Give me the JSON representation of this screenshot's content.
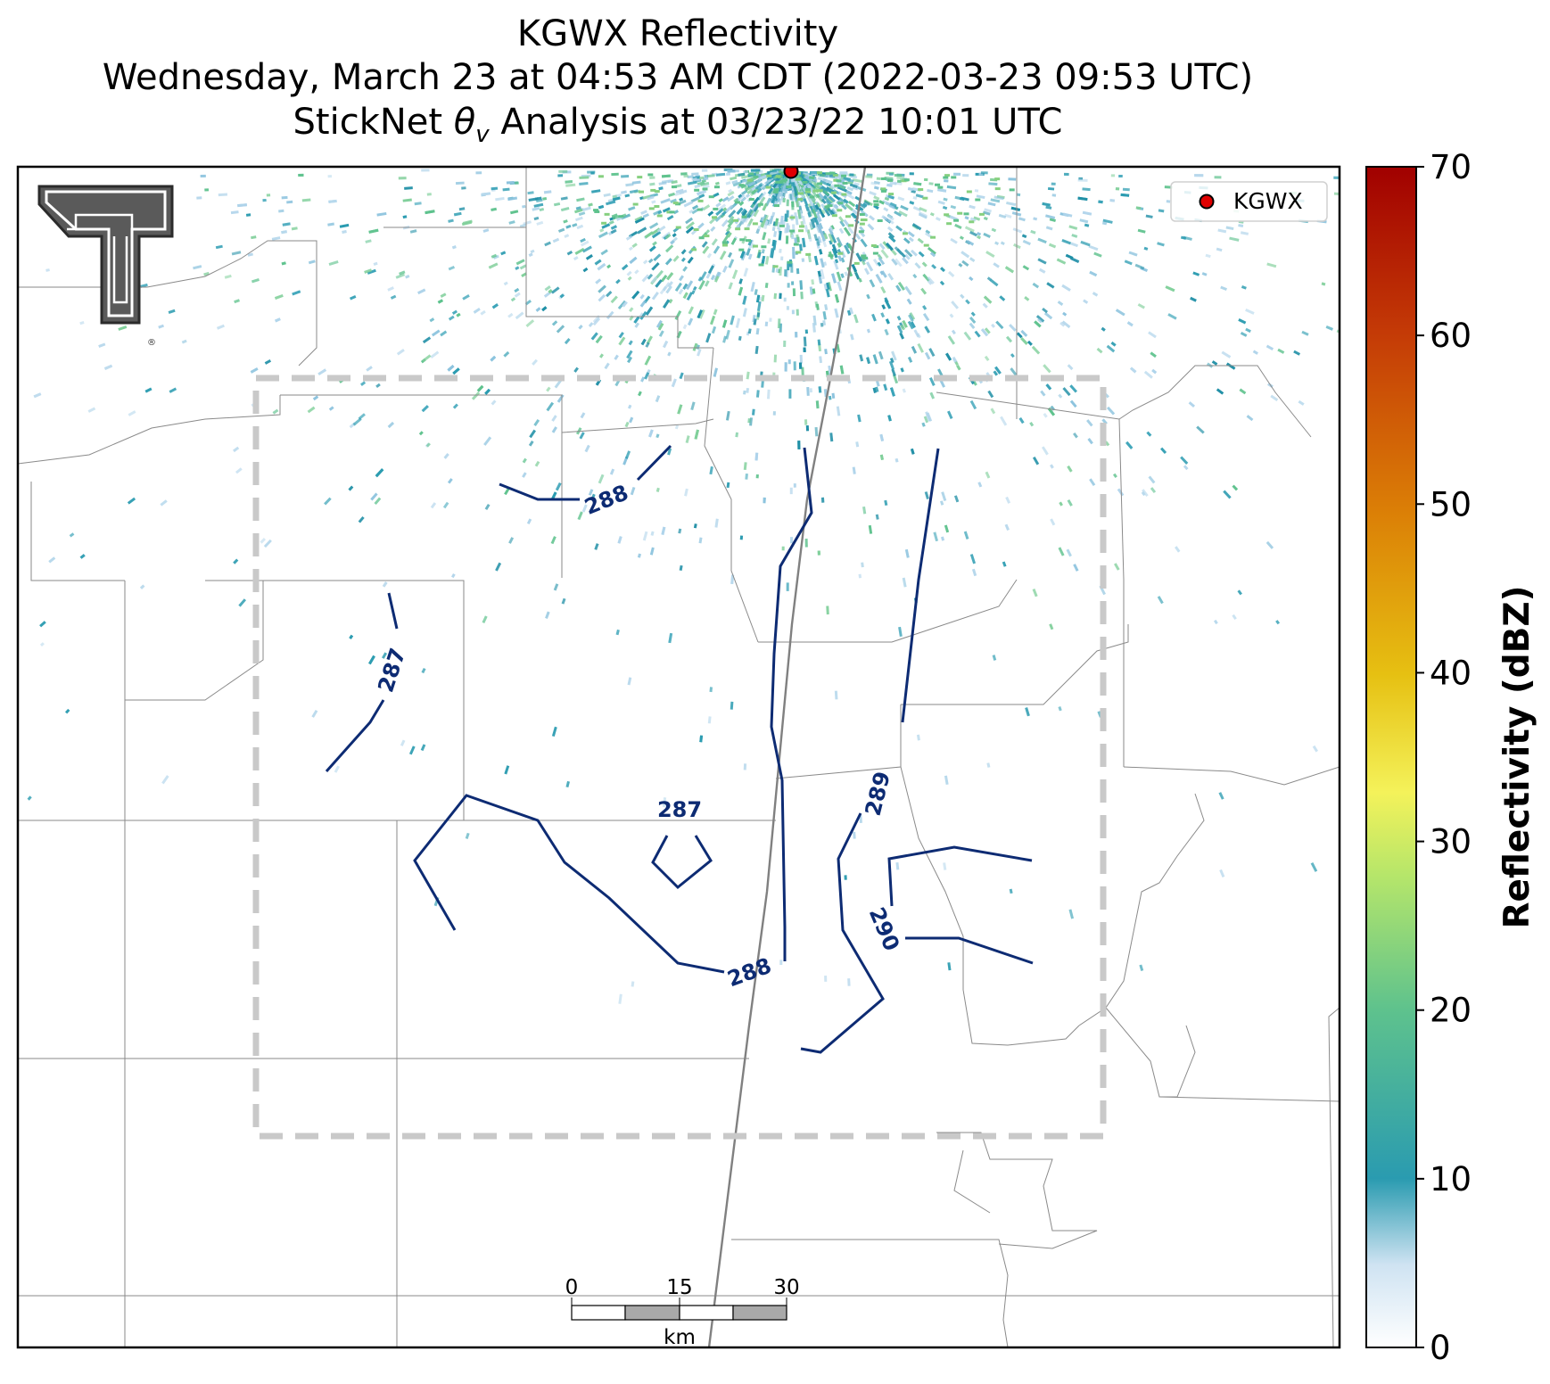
{
  "title": {
    "line1": "KGWX Reflectivity",
    "line2": "Wednesday, March 23 at 04:53 AM CDT (2022-03-23 09:53 UTC)",
    "line3_prefix": "StickNet ",
    "line3_symbol": "θ",
    "line3_subscript": "v",
    "line3_suffix": " Analysis at 03/23/22 10:01 UTC"
  },
  "legend": {
    "label": "KGWX",
    "marker_color": "#e00000"
  },
  "radar": {
    "name": "KGWX"
  },
  "colorbar": {
    "label": "Reflectivity (dBZ)",
    "ticks": [
      "0",
      "10",
      "20",
      "30",
      "40",
      "50",
      "60",
      "70"
    ],
    "range": [
      0,
      70
    ],
    "colors": [
      "#ffffff",
      "#cfe3f2",
      "#2a9bb0",
      "#5ec28d",
      "#b6e66a",
      "#f4f25a",
      "#e6c012",
      "#db7e06",
      "#c43a06",
      "#a10000"
    ]
  },
  "contours": {
    "color": "#0d2b73",
    "labels": [
      "288",
      "287",
      "287",
      "288",
      "289",
      "290"
    ]
  },
  "scalebar": {
    "ticks": [
      "0",
      "15",
      "30"
    ],
    "unit": "km"
  },
  "logo": {
    "name": "Texas Tech Double T",
    "trademark": "®"
  }
}
